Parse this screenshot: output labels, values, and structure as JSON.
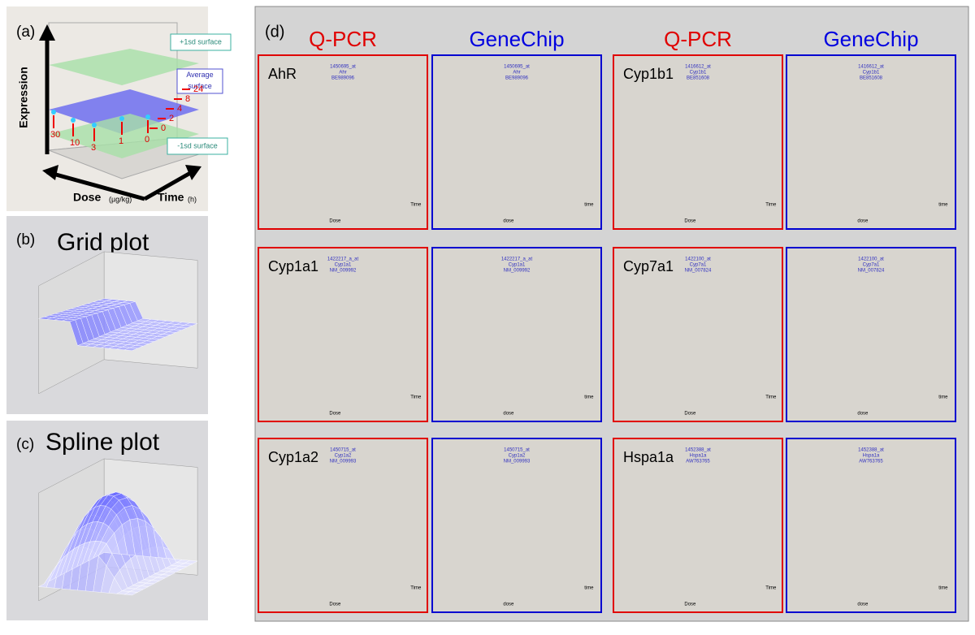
{
  "panel_a": {
    "label": "(a)",
    "y_axis": "Expression",
    "x_axis": "Dose",
    "x_unit": "(µg/kg)",
    "z_axis": "Time",
    "z_unit": "(h)",
    "annotations": [
      "+1sd surface",
      "Average surface",
      "-1sd surface"
    ],
    "doses": [
      "30",
      "10",
      "3",
      "1",
      "0"
    ],
    "times": [
      "0",
      "2",
      "4",
      "8",
      "24"
    ]
  },
  "panel_b": {
    "label": "(b)",
    "title": "Grid plot"
  },
  "panel_c": {
    "label": "(c)",
    "title": "Spline plot"
  },
  "panel_d": {
    "label": "(d)",
    "columns": [
      "Q-PCR",
      "GeneChip",
      "Q-PCR",
      "GeneChip"
    ],
    "plots": [
      {
        "gene": "AhR",
        "probe": [
          "1450695_at",
          "Ahr",
          "BE989096"
        ],
        "x_axis": "Dose",
        "z_axis": "Time"
      },
      {
        "probe": [
          "1450695_at",
          "Ahr",
          "BE989096"
        ],
        "x_axis": "dose",
        "z_axis": "time"
      },
      {
        "gene": "Cyp1b1",
        "probe": [
          "1416612_at",
          "Cyp1b1",
          "BE851608"
        ],
        "x_axis": "Dose",
        "z_axis": "Time"
      },
      {
        "probe": [
          "1416612_at",
          "Cyp1b1",
          "BE851608"
        ],
        "x_axis": "dose",
        "z_axis": "time"
      },
      {
        "gene": "Cyp1a1",
        "probe": [
          "1422217_a_at",
          "Cyp1a1",
          "NM_009992"
        ],
        "x_axis": "Dose",
        "z_axis": "Time"
      },
      {
        "probe": [
          "1422217_a_at",
          "Cyp1a1",
          "NM_009992"
        ],
        "x_axis": "dose",
        "z_axis": "time"
      },
      {
        "gene": "Cyp7a1",
        "probe": [
          "1422100_at",
          "Cyp7a1",
          "NM_007824"
        ],
        "x_axis": "Dose",
        "z_axis": "Time"
      },
      {
        "probe": [
          "1422100_at",
          "Cyp7a1",
          "NM_007824"
        ],
        "x_axis": "dose",
        "z_axis": "time"
      },
      {
        "gene": "Cyp1a2",
        "probe": [
          "1450715_at",
          "Cyp1a2",
          "NM_009993"
        ],
        "x_axis": "Dose",
        "z_axis": "Time"
      },
      {
        "probe": [
          "1450715_at",
          "Cyp1a2",
          "NM_009993"
        ],
        "x_axis": "dose",
        "z_axis": "time"
      },
      {
        "gene": "Hspa1a",
        "probe": [
          "1452388_at",
          "Hspa1a",
          "AW763765"
        ],
        "x_axis": "Dose",
        "z_axis": "Time"
      },
      {
        "probe": [
          "1452388_at",
          "Hspa1a",
          "AW763765"
        ],
        "x_axis": "dose",
        "z_axis": "time"
      }
    ]
  }
}
